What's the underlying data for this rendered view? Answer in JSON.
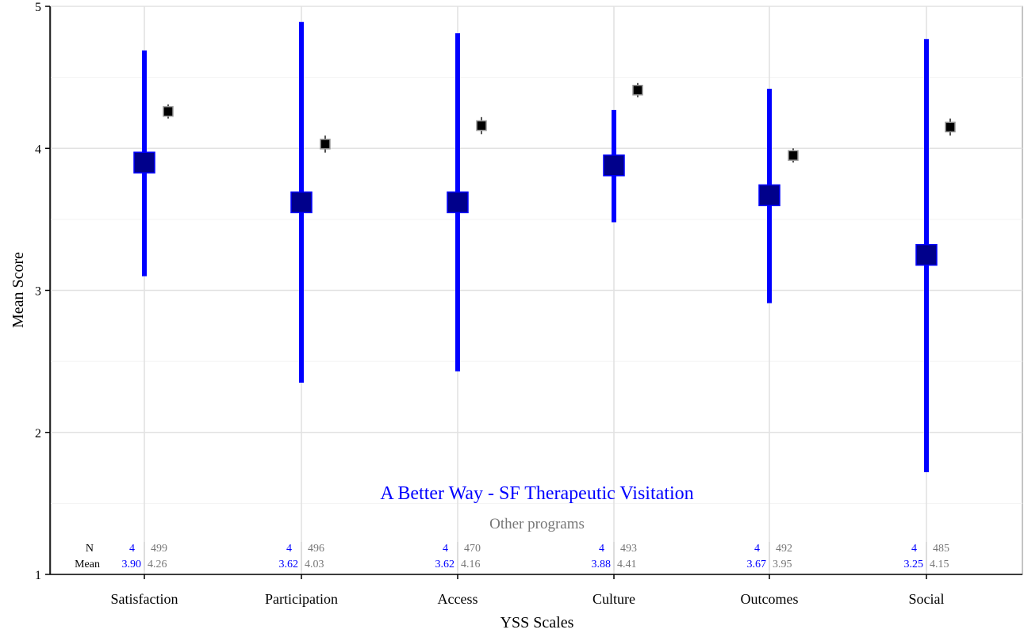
{
  "chart_data": {
    "type": "scatter",
    "xlabel": "YSS Scales",
    "ylabel": "Mean Score",
    "ylim": [
      1,
      5
    ],
    "y_ticks": [
      "1",
      "2",
      "3",
      "4",
      "5"
    ],
    "categories": [
      "Satisfaction",
      "Participation",
      "Access",
      "Culture",
      "Outcomes",
      "Social"
    ],
    "grid": true,
    "series": [
      {
        "name": "A Better Way - SF Therapeutic Visitation",
        "color": "#0000ff",
        "marker_color": "#00008b",
        "values": [
          3.9,
          3.62,
          3.62,
          3.88,
          3.67,
          3.25
        ],
        "ci_low": [
          3.1,
          2.35,
          2.43,
          3.48,
          2.91,
          1.72
        ],
        "ci_high": [
          4.69,
          4.89,
          4.81,
          4.27,
          4.42,
          4.77
        ]
      },
      {
        "name": "Other programs",
        "color": "#000000",
        "label_color": "#777777",
        "values": [
          4.26,
          4.03,
          4.16,
          4.41,
          3.95,
          4.15
        ],
        "ci_low": [
          4.21,
          3.97,
          4.1,
          4.36,
          3.9,
          4.09
        ],
        "ci_high": [
          4.31,
          4.09,
          4.22,
          4.46,
          4.0,
          4.21
        ]
      }
    ],
    "table": {
      "row_labels": {
        "n": "N",
        "mean": "Mean"
      },
      "program": {
        "n": [
          "4",
          "4",
          "4",
          "4",
          "4",
          "4"
        ],
        "mean": [
          "3.90",
          "3.62",
          "3.62",
          "3.88",
          "3.67",
          "3.25"
        ]
      },
      "other": {
        "n": [
          "499",
          "496",
          "470",
          "493",
          "492",
          "485"
        ],
        "mean": [
          "4.26",
          "4.03",
          "4.16",
          "4.41",
          "3.95",
          "4.15"
        ]
      }
    }
  }
}
